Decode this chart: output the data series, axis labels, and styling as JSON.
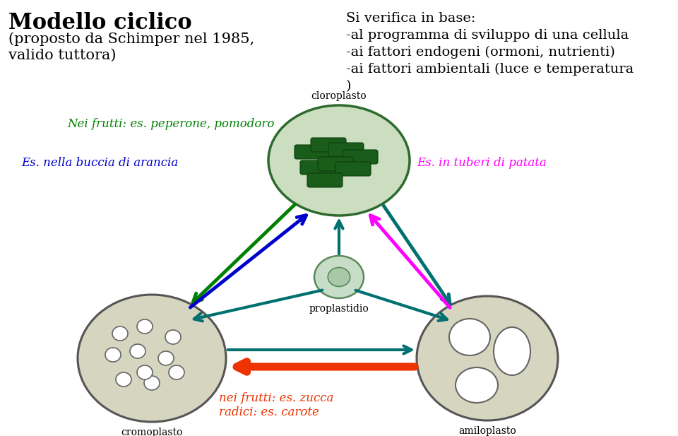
{
  "bg_color": "#ffffff",
  "title_line1": "Modello ciclico",
  "title_line2": "(proposto da Schimper nel 1985,",
  "title_line3": "valido tuttora)",
  "right_text_lines": [
    "Si verifica in base:",
    "-al programma di sviluppo di una cellula",
    "-ai fattori endogeni (ormoni, nutrienti)",
    "-ai fattori ambientali (luce e temperatura",
    ")"
  ],
  "label_cloroplasto": "cloroplasto",
  "label_proplastidio": "proplastidio",
  "label_cromoplasto": "cromoplasto",
  "label_amiloplasto": "amiloplasto",
  "label_nei_frutti": "Nei frutti: es. peperone, pomodoro",
  "label_buccia": "Es. nella buccia di arancia",
  "label_tuberi": "Es. in tuberi di patata",
  "label_bottom1": "nei frutti: es. zucca",
  "label_bottom2": "radici: es. carote",
  "color_teal": "#007070",
  "color_green_arrow": "#008000",
  "color_blue_arrow": "#0000CC",
  "color_magenta": "#FF00FF",
  "color_orange_red": "#EE3300",
  "color_label_green": "#008000",
  "color_label_blue": "#0000CC",
  "color_label_magenta": "#FF00FF",
  "color_label_orange_red": "#EE3300"
}
